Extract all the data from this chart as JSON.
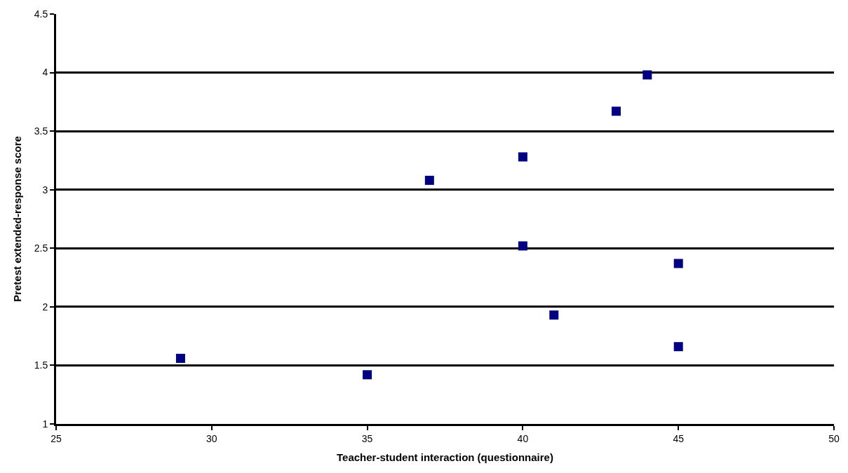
{
  "chart_data": {
    "type": "scatter",
    "xlabel": "Teacher-student interaction (questionnaire)",
    "ylabel": "Pretest extended-response score",
    "x": [
      29,
      35,
      37,
      40,
      40,
      41,
      43,
      44,
      45,
      45
    ],
    "series": [
      {
        "color": "#000080",
        "values": [
          1.56,
          1.42,
          3.08,
          3.28,
          2.52,
          1.93,
          3.67,
          3.98,
          2.37,
          1.66
        ]
      }
    ],
    "xlim": [
      25,
      50
    ],
    "xticks": [
      25,
      30,
      35,
      40,
      45,
      50
    ],
    "ylim": [
      1,
      4.5
    ],
    "yticks": [
      1,
      1.5,
      2,
      2.5,
      3,
      3.5,
      4,
      4.5
    ],
    "grid": "y",
    "marker": "square"
  }
}
